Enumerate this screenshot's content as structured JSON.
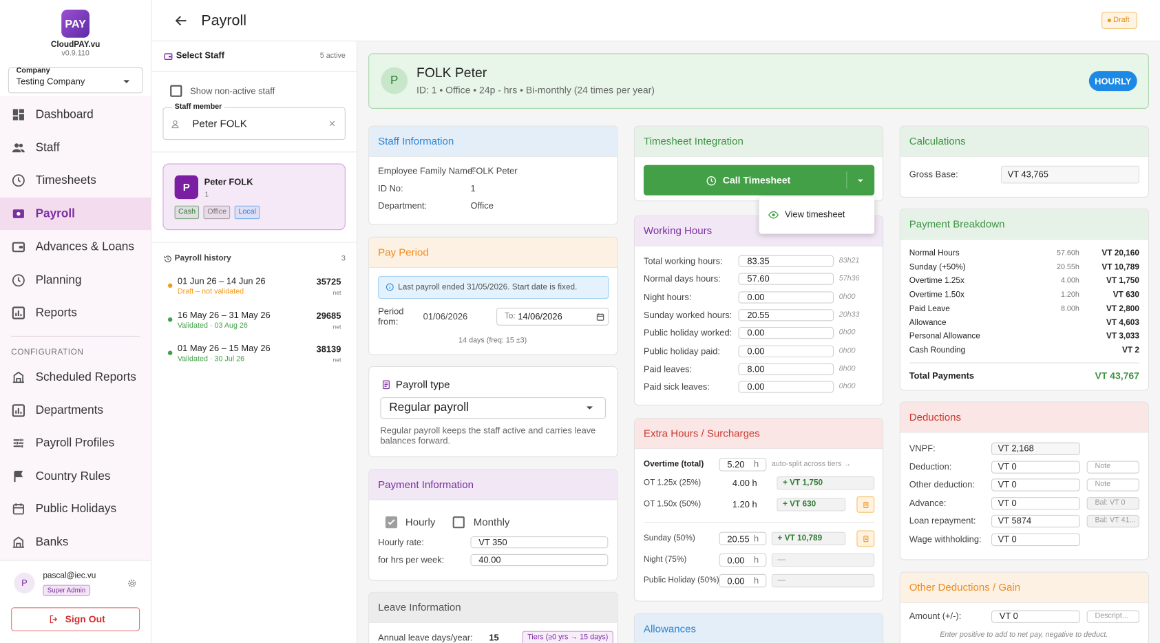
{
  "header": {
    "title": "Payroll",
    "status": "Draft"
  },
  "sidebar": {
    "logo": "PAY",
    "brand": "CloudPAY.vu",
    "version": "v0.9.110",
    "company_label": "Company",
    "company": "Testing Company",
    "nav": [
      "Dashboard",
      "Staff",
      "Timesheets",
      "Payroll",
      "Advances & Loans",
      "Planning",
      "Reports"
    ],
    "active": 3,
    "config_heading": "CONFIGURATION",
    "config_nav": [
      "Scheduled Reports",
      "Departments",
      "Payroll Profiles",
      "Country Rules",
      "Public Holidays",
      "Banks"
    ],
    "user": {
      "initial": "P",
      "email": "pascal@iec.vu",
      "role": "Super Admin"
    },
    "sign_out": "Sign Out"
  },
  "staff_panel": {
    "title": "Select Staff",
    "active_count": "5 active",
    "show_nonactive": "Show non-active staff",
    "field_label": "Staff member",
    "field_value": "Peter FOLK",
    "card": {
      "initial": "P",
      "name": "Peter FOLK",
      "id": "1",
      "tags": [
        {
          "text": "Cash",
          "color": "#2e7d32"
        },
        {
          "text": "Office",
          "color": "#757575"
        },
        {
          "text": "Local",
          "color": "#1e88e5"
        }
      ]
    },
    "history": {
      "title": "Payroll history",
      "count": "3",
      "items": [
        {
          "period": "01 Jun 26 – 14 Jun 26",
          "status": "Draft – not validated",
          "amount": "35725",
          "unit": "net",
          "color": "#f29b1f"
        },
        {
          "period": "16 May 26 – 31 May 26",
          "status": "Validated · 03 Aug 26",
          "amount": "29685",
          "unit": "net",
          "color": "#43a047"
        },
        {
          "period": "01 May 26 – 15 May 26",
          "status": "Validated · 30 Jul 26",
          "amount": "38139",
          "unit": "net",
          "color": "#43a047"
        }
      ]
    }
  },
  "employee": {
    "initial": "P",
    "name": "FOLK Peter",
    "details": "ID: 1 • Office • 24p - hrs • Bi-monthly (24 times per year)",
    "badge": "HOURLY"
  },
  "staff_info": {
    "title": "Staff Information",
    "rows": [
      [
        "Employee Family Name:",
        "FOLK Peter"
      ],
      [
        "ID No:",
        "1"
      ],
      [
        "Department:",
        "Office"
      ]
    ]
  },
  "pay_period": {
    "title": "Pay Period",
    "notice": "Last payroll ended 31/05/2026. Start date is fixed.",
    "from_label": "Period from:",
    "from": "01/06/2026",
    "to_label": "To:",
    "to": "14/06/2026",
    "note": "14 days (freq: 15 ±3)"
  },
  "payroll_type": {
    "title": "Payroll type",
    "value": "Regular payroll",
    "description": "Regular payroll keeps the staff active and carries leave balances forward."
  },
  "payment_info": {
    "title": "Payment Information",
    "hourly": "Hourly",
    "monthly": "Monthly",
    "rows": [
      [
        "Hourly rate:",
        "VT 350"
      ],
      [
        "for hrs per week:",
        "40.00"
      ]
    ]
  },
  "leave_info": {
    "title": "Leave Information",
    "annual_label": "Annual leave days/year:",
    "annual": "15",
    "tiers": "Tiers (≥0 yrs → 15 days)"
  },
  "timesheet": {
    "title": "Timesheet Integration",
    "button": "Call Timesheet",
    "menu_item": "View timesheet"
  },
  "working_hours": {
    "title": "Working Hours",
    "rows": [
      [
        "Total working hours:",
        "83.35",
        "83h21"
      ],
      [
        "Normal days hours:",
        "57.60",
        "57h36"
      ],
      [
        "Night hours:",
        "0.00",
        "0h00"
      ],
      [
        "Sunday worked hours:",
        "20.55",
        "20h33"
      ],
      [
        "Public holiday worked:",
        "0.00",
        "0h00"
      ],
      [
        "Public holiday paid:",
        "0.00",
        "0h00"
      ],
      [
        "Paid leaves:",
        "8.00",
        "8h00"
      ],
      [
        "Paid sick leaves:",
        "0.00",
        "0h00"
      ]
    ]
  },
  "extra_hours": {
    "title": "Extra Hours / Surcharges",
    "overtime_label": "Overtime (total)",
    "overtime_value": "5.20",
    "overtime_unit": "h",
    "auto_split": "auto-split across tiers →",
    "tiers": [
      {
        "label": "OT 1.25x (25%)",
        "hours": "4.00 h",
        "amount": "+ VT 1,750"
      },
      {
        "label": "OT 1.50x (50%)",
        "hours": "1.20 h",
        "amount": "+ VT 630"
      }
    ],
    "rows": [
      {
        "label": "Sunday (50%)",
        "value": "20.55",
        "unit": "h",
        "amount": "+ VT 10,789"
      },
      {
        "label": "Night (75%)",
        "value": "0.00",
        "unit": "h",
        "amount": "—"
      },
      {
        "label": "Public Holiday (50%)",
        "value": "0.00",
        "unit": "h",
        "amount": "—"
      }
    ]
  },
  "allowances": {
    "title": "Allowances"
  },
  "calculations": {
    "title": "Calculations",
    "gross_label": "Gross Base:",
    "gross": "VT 43,765"
  },
  "breakdown": {
    "title": "Payment Breakdown",
    "rows": [
      {
        "label": "Normal Hours",
        "hours": "57.60h",
        "amount": "VT 20,160"
      },
      {
        "label": "Sunday (+50%)",
        "hours": "20.55h",
        "amount": "VT 10,789"
      },
      {
        "label": "Overtime 1.25x",
        "hours": "4.00h",
        "amount": "VT 1,750"
      },
      {
        "label": "Overtime 1.50x",
        "hours": "1.20h",
        "amount": "VT 630"
      },
      {
        "label": "Paid Leave",
        "hours": "8.00h",
        "amount": "VT 2,800"
      },
      {
        "label": "Allowance",
        "amount": "VT 4,603"
      },
      {
        "label": "Personal Allowance",
        "amount": "VT 3,033"
      },
      {
        "label": "Cash Rounding",
        "amount": "VT 2"
      }
    ],
    "total_label": "Total Payments",
    "total": "VT 43,767"
  },
  "deductions": {
    "title": "Deductions",
    "rows": [
      {
        "label": "VNPF:",
        "value": "VT 2,168"
      },
      {
        "label": "Deduction:",
        "value": "VT 0",
        "extra": "Note"
      },
      {
        "label": "Other deduction:",
        "value": "VT 0",
        "extra": "Note"
      },
      {
        "label": "Advance:",
        "value": "VT 0",
        "extra": "Bal: VT 0"
      },
      {
        "label": "Loan repayment:",
        "value": "VT 5874",
        "extra": "Bal: VT 41..."
      },
      {
        "label": "Wage withholding:",
        "value": "VT 0"
      }
    ]
  },
  "other_deductions": {
    "title": "Other Deductions / Gain",
    "amount_label": "Amount (+/-):",
    "amount": "VT 0",
    "placeholder": "Descript...",
    "note": "Enter positive to add to net pay, negative to deduct."
  }
}
